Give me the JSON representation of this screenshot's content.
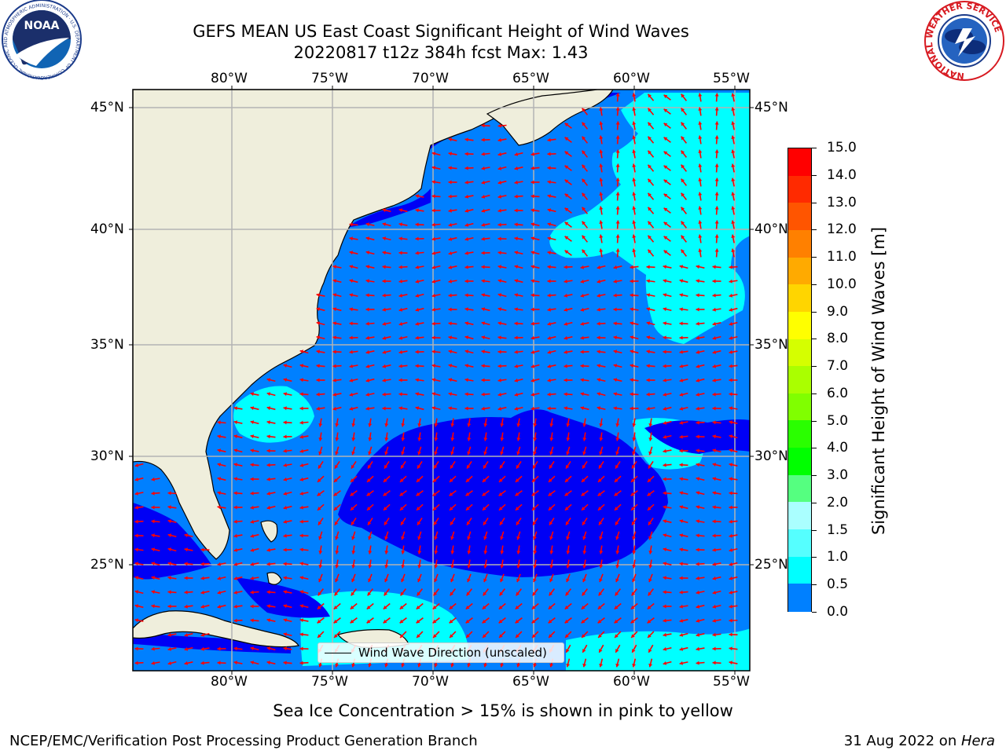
{
  "header": {
    "title_line1": "GEFS MEAN US East Coast Significant Height of Wind Waves",
    "title_line2": "20220817 t12z 384h fcst   Max: 1.43",
    "noaa_logo_text": "NOAA",
    "noaa_ring_text": "NATIONAL OCEANIC AND ATMOSPHERIC ADMINISTRATION · U.S. DEPARTMENT OF COMMERCE",
    "nws_ring_text": "NATIONAL WEATHER SERVICE"
  },
  "map": {
    "lon_labels": [
      "80°W",
      "75°W",
      "70°W",
      "65°W",
      "60°W",
      "55°W"
    ],
    "lat_labels": [
      "45°N",
      "40°N",
      "35°N",
      "30°N",
      "25°N"
    ],
    "legend_label": "Wind Wave Direction (unscaled)",
    "colors": {
      "land": "#efeedc",
      "coast": "#000000",
      "grid": "#b3b3b3",
      "arrow": "#ff0000",
      "band_0_0_5": "#0000f5",
      "band_0_5_1_0": "#0080ff",
      "band_1_0_1_5": "#00ffff"
    }
  },
  "colorbar": {
    "title": "Significant Height of Wind Waves [m]",
    "ticks": [
      "15.0",
      "14.0",
      "13.0",
      "12.0",
      "11.0",
      "10.0",
      "9.0",
      "8.0",
      "7.0",
      "6.0",
      "5.0",
      "4.0",
      "3.0",
      "2.0",
      "1.5",
      "1.0",
      "0.5",
      "0.0"
    ],
    "colors": [
      "#ff0000",
      "#ff2a00",
      "#ff5500",
      "#ff8000",
      "#ffaa00",
      "#ffd500",
      "#ffff00",
      "#d5ff00",
      "#aaff00",
      "#80ff00",
      "#2aff00",
      "#00ff00",
      "#55ff80",
      "#aaffff",
      "#55ffff",
      "#00ffff",
      "#0080ff",
      "#0000f5"
    ]
  },
  "footer": {
    "ice_note": "Sea Ice Concentration > 15% is shown in pink to yellow",
    "left": "NCEP/EMC/Verification Post Processing Product Generation Branch",
    "date": "31 Aug 2022 on ",
    "machine": "Hera"
  }
}
